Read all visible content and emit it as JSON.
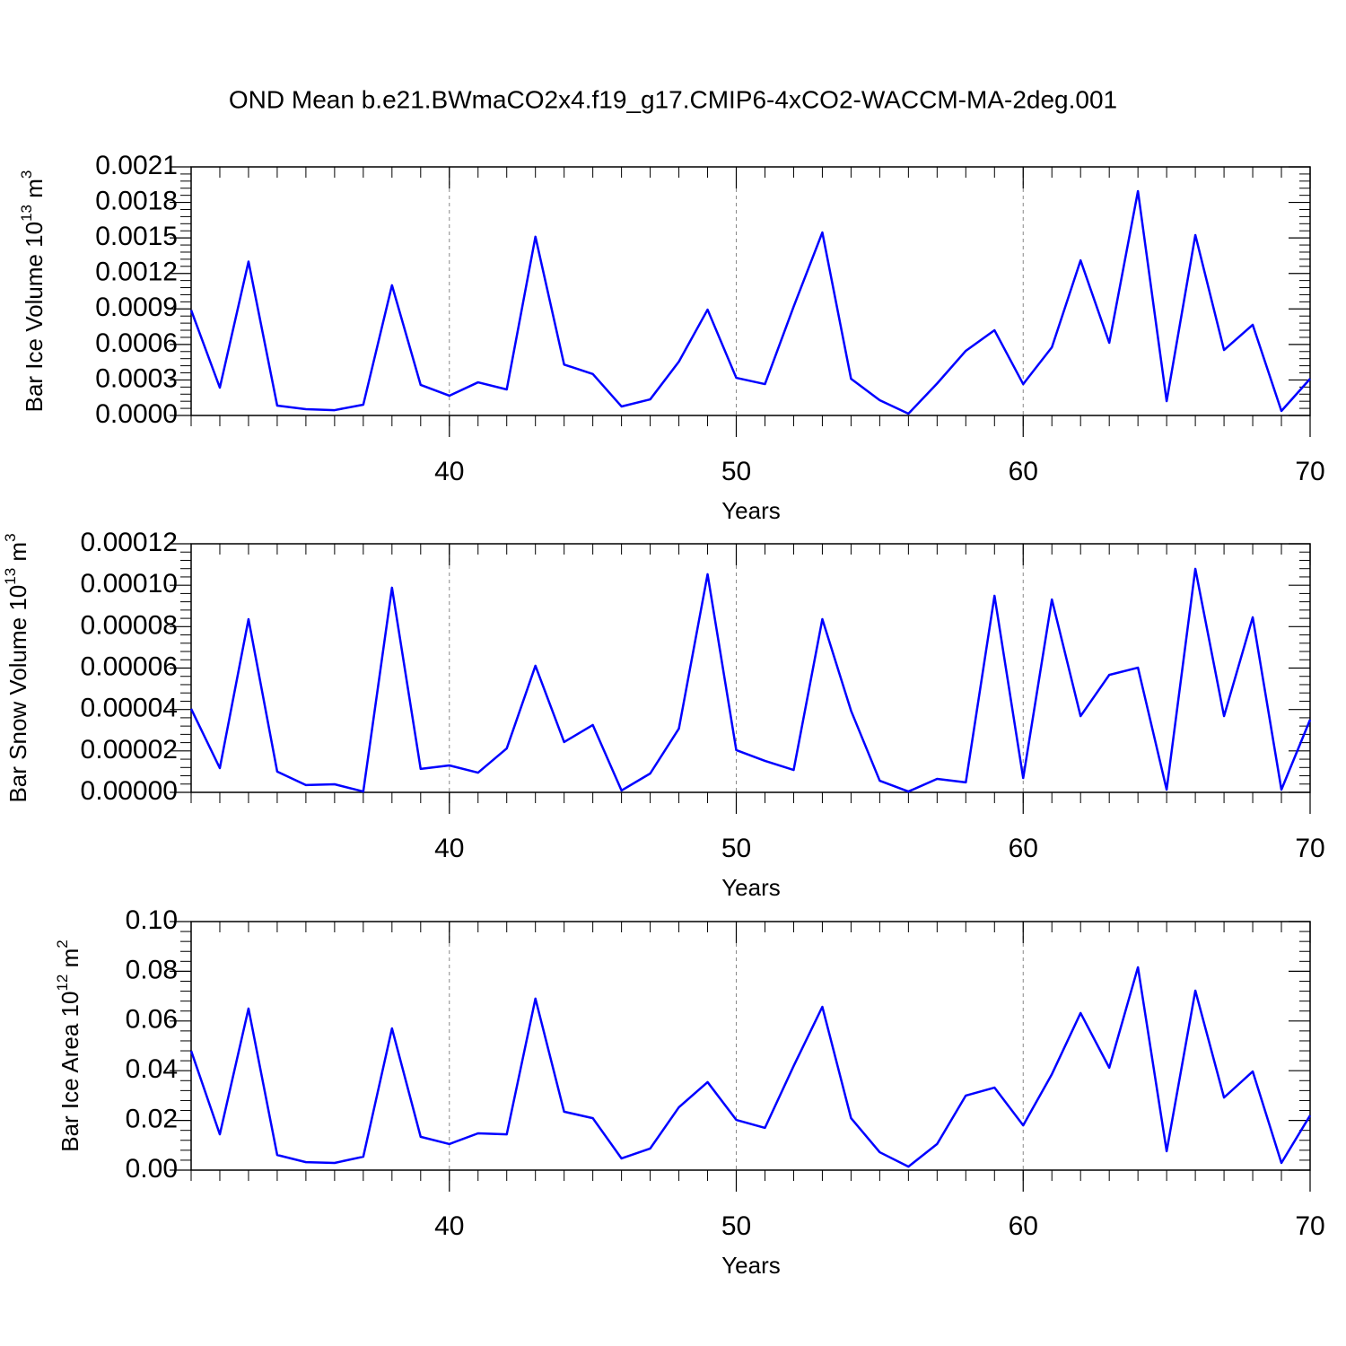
{
  "chart_data": [
    {
      "type": "line",
      "title": "OND Mean b.e21.BWmaCO2x4.f19_g17.CMIP6-4xCO2-WACCM-MA-2deg.001",
      "xlabel": "Years",
      "ylabel": [
        "Bar Ice Volume 10",
        "13",
        " m",
        "3"
      ],
      "x": [
        31,
        32,
        33,
        34,
        35,
        36,
        37,
        38,
        39,
        40,
        41,
        42,
        43,
        44,
        45,
        46,
        47,
        48,
        49,
        50,
        51,
        52,
        53,
        54,
        55,
        56,
        57,
        58,
        59,
        60,
        61,
        62,
        63,
        64,
        65,
        66,
        67,
        68,
        69,
        70
      ],
      "values": [
        0.00089,
        0.000235,
        0.0013,
        8.3e-05,
        5.3e-05,
        4.5e-05,
        9.1e-05,
        0.0011,
        0.000258,
        0.000167,
        0.00028,
        0.00022,
        0.00151,
        0.00043,
        0.00035,
        7.6e-05,
        0.000136,
        0.000455,
        0.000894,
        0.000318,
        0.000265,
        0.00092,
        0.001546,
        0.00031,
        0.000129,
        1.5e-05,
        0.00027,
        0.000546,
        0.00072,
        0.000265,
        0.000576,
        0.00131,
        0.000614,
        0.001895,
        0.000121,
        0.001524,
        0.000553,
        0.000766,
        3.8e-05,
        0.00031
      ],
      "color": "#0000ff",
      "xlim": [
        31,
        70
      ],
      "xticks": [
        40,
        50,
        60,
        70
      ],
      "xgrid": true,
      "ylim": [
        0,
        0.0021
      ],
      "yticks": [
        {
          "value": 0,
          "label": "0.0000"
        },
        0.0003,
        0.0006,
        0.0009,
        0.0012,
        0.0015,
        0.0018,
        0.0021
      ]
    },
    {
      "type": "line",
      "xlabel": "Years",
      "ylabel": [
        "Bar Snow Volume 10",
        "13",
        " m",
        "3"
      ],
      "x": [
        31,
        32,
        33,
        34,
        35,
        36,
        37,
        38,
        39,
        40,
        41,
        42,
        43,
        44,
        45,
        46,
        47,
        48,
        49,
        50,
        51,
        52,
        53,
        54,
        55,
        56,
        57,
        58,
        59,
        60,
        61,
        62,
        63,
        64,
        65,
        66,
        67,
        68,
        69,
        70
      ],
      "values": [
        4.03e-05,
        1.17e-05,
        8.36e-05,
        1e-05,
        3.5e-06,
        3.9e-06,
        4e-07,
        9.88e-05,
        1.13e-05,
        1.3e-05,
        9.5e-06,
        2.12e-05,
        6.11e-05,
        2.43e-05,
        3.25e-05,
        9e-07,
        9.1e-06,
        3.08e-05,
        0.0001053,
        2.04e-05,
        1.52e-05,
        1.08e-05,
        8.36e-05,
        3.94e-05,
        5.6e-06,
        4e-07,
        6.5e-06,
        4.8e-06,
        9.49e-05,
        6.9e-06,
        9.31e-05,
        3.68e-05,
        5.67e-05,
        6.02e-05,
        1.3e-06,
        0.0001079,
        3.68e-05,
        8.45e-05,
        1.3e-06,
        3.51e-05
      ],
      "color": "#0000ff",
      "xlim": [
        31,
        70
      ],
      "xticks": [
        40,
        50,
        60,
        70
      ],
      "xgrid": true,
      "ylim": [
        0,
        0.00012
      ],
      "yticks": [
        {
          "value": 0,
          "label": "0.00000"
        },
        2e-05,
        4e-05,
        6e-05,
        8e-05,
        {
          "value": 0.0001,
          "label": "0.00010"
        },
        0.00012
      ]
    },
    {
      "type": "line",
      "xlabel": "Years",
      "ylabel": [
        "Bar Ice Area 10",
        "12",
        " m",
        "2"
      ],
      "x": [
        31,
        32,
        33,
        34,
        35,
        36,
        37,
        38,
        39,
        40,
        41,
        42,
        43,
        44,
        45,
        46,
        47,
        48,
        49,
        50,
        51,
        52,
        53,
        54,
        55,
        56,
        57,
        58,
        59,
        60,
        61,
        62,
        63,
        64,
        65,
        66,
        67,
        68,
        69,
        70
      ],
      "values": [
        0.048,
        0.0144,
        0.065,
        0.0061,
        0.0032,
        0.0029,
        0.0054,
        0.057,
        0.0134,
        0.0105,
        0.0148,
        0.0144,
        0.069,
        0.0235,
        0.0209,
        0.0047,
        0.0087,
        0.0253,
        0.0354,
        0.0202,
        0.017,
        0.0419,
        0.0657,
        0.0209,
        0.0072,
        0.0014,
        0.0105,
        0.03,
        0.0332,
        0.018,
        0.0386,
        0.0632,
        0.0412,
        0.0816,
        0.0076,
        0.0722,
        0.0292,
        0.0397,
        0.0029,
        0.022
      ],
      "color": "#0000ff",
      "xlim": [
        31,
        70
      ],
      "xticks": [
        40,
        50,
        60,
        70
      ],
      "xgrid": true,
      "ylim": [
        0,
        0.1
      ],
      "yticks": [
        {
          "value": 0,
          "label": "0.00"
        },
        0.02,
        0.04,
        0.06,
        0.08,
        {
          "value": 0.1,
          "label": "0.10"
        }
      ]
    }
  ]
}
